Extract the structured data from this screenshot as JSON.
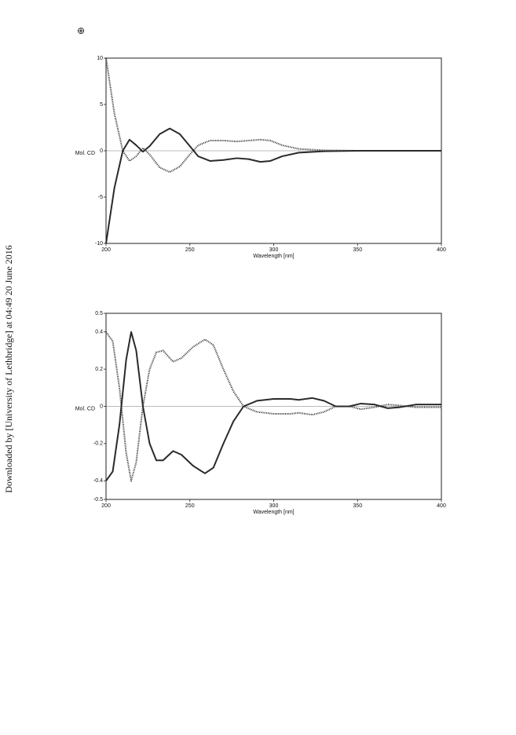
{
  "page": {
    "symbol": "⊕",
    "download_note": "Downloaded by [University of Lethbridge] at 04:49 20 June 2016"
  },
  "chart_data": [
    {
      "type": "line",
      "ylabel": "Mol. CD",
      "xlabel": "Wavelength [nm]",
      "xlim": [
        200,
        400
      ],
      "xticks": [
        200,
        250,
        300,
        350,
        400
      ],
      "ylim": [
        -10,
        10
      ],
      "yticks": [
        -10,
        -5,
        0,
        5,
        10
      ],
      "zero_line": true,
      "x": [
        200,
        205,
        210,
        214,
        218,
        222,
        226,
        232,
        238,
        244,
        250,
        255,
        262,
        270,
        278,
        285,
        292,
        298,
        305,
        315,
        330,
        350,
        400
      ],
      "series": [
        {
          "color": "#2a2a2a",
          "style": "solid",
          "values": [
            -10,
            -4,
            0,
            1.2,
            0.6,
            -0.1,
            0.5,
            1.8,
            2.4,
            1.8,
            0.5,
            -0.6,
            -1.1,
            -1.0,
            -0.8,
            -0.9,
            -1.2,
            -1.1,
            -0.6,
            -0.2,
            -0.05,
            0,
            0
          ]
        },
        {
          "color": "#2a2a2a",
          "style": "dotted",
          "values": [
            10,
            4,
            0,
            -1.1,
            -0.6,
            0.3,
            -0.4,
            -1.8,
            -2.3,
            -1.7,
            -0.4,
            0.6,
            1.1,
            1.1,
            1.0,
            1.1,
            1.2,
            1.1,
            0.6,
            0.2,
            0.05,
            0,
            0
          ]
        }
      ]
    },
    {
      "type": "line",
      "ylabel": "Mol. CD",
      "xlabel": "Wavelength [nm]",
      "xlim": [
        200,
        400
      ],
      "xticks": [
        200,
        250,
        300,
        350,
        400
      ],
      "ylim": [
        -0.5,
        0.5
      ],
      "yticks": [
        -0.5,
        -0.4,
        -0.2,
        0,
        0.2,
        0.4,
        0.5
      ],
      "zero_line": true,
      "x": [
        200,
        204,
        208,
        212,
        215,
        218,
        222,
        226,
        230,
        234,
        240,
        245,
        252,
        259,
        264,
        270,
        276,
        282,
        290,
        300,
        310,
        315,
        323,
        330,
        337,
        345,
        352,
        360,
        368,
        375,
        385,
        400
      ],
      "series": [
        {
          "color": "#2a2a2a",
          "style": "solid",
          "values": [
            -0.4,
            -0.35,
            -0.1,
            0.25,
            0.4,
            0.3,
            0,
            -0.2,
            -0.29,
            -0.29,
            -0.24,
            -0.26,
            -0.32,
            -0.36,
            -0.33,
            -0.2,
            -0.08,
            0.0,
            0.03,
            0.04,
            0.04,
            0.035,
            0.045,
            0.03,
            0.0,
            0.0,
            0.015,
            0.01,
            -0.01,
            -0.005,
            0.01,
            0.01
          ]
        },
        {
          "color": "#2a2a2a",
          "style": "dotted",
          "values": [
            0.4,
            0.35,
            0.1,
            -0.25,
            -0.4,
            -0.3,
            0,
            0.2,
            0.29,
            0.3,
            0.24,
            0.26,
            0.32,
            0.36,
            0.33,
            0.2,
            0.08,
            0.0,
            -0.03,
            -0.04,
            -0.04,
            -0.035,
            -0.045,
            -0.03,
            0.0,
            0.0,
            -0.015,
            -0.005,
            0.01,
            0.005,
            -0.005,
            -0.005
          ]
        }
      ]
    }
  ]
}
